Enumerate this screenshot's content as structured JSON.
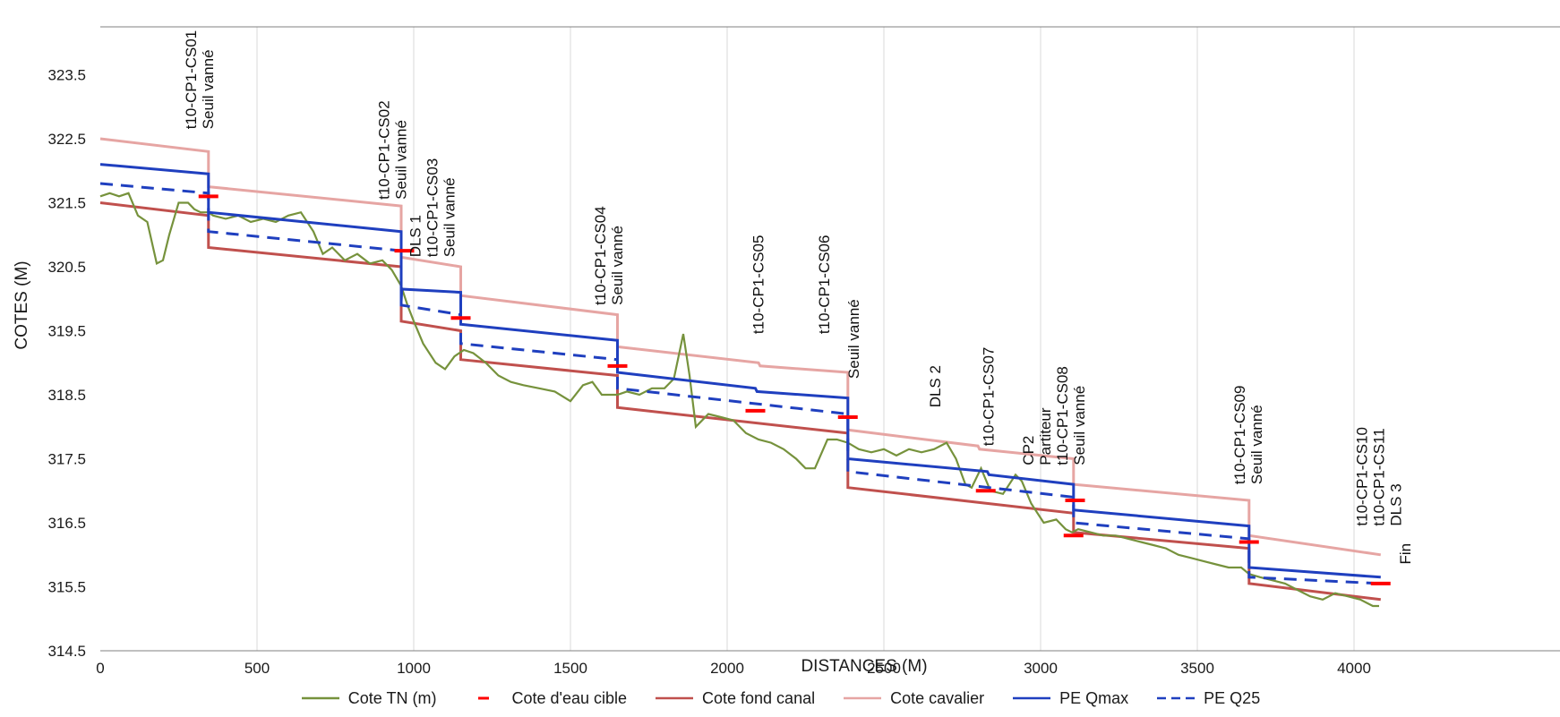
{
  "chart_data": {
    "type": "line",
    "title": "",
    "xlabel": "DISTANCES (M)",
    "ylabel": "COTES (M)",
    "xlim": [
      0,
      4150
    ],
    "ylim": [
      314.5,
      324.0
    ],
    "xticks": [
      0,
      500,
      1000,
      1500,
      2000,
      2500,
      3000,
      3500,
      4000
    ],
    "xtick_labels": [
      "0",
      "500",
      "1000",
      "1500",
      "2000",
      "2500",
      "3000",
      "3500",
      "4000"
    ],
    "yticks": [
      314.5,
      315.5,
      316.5,
      317.5,
      318.5,
      319.5,
      320.5,
      321.5,
      322.5,
      323.5
    ],
    "ytick_labels": [
      "314.5",
      "315.5",
      "316.5",
      "317.5",
      "318.5",
      "319.5",
      "320.5",
      "321.5",
      "322.5",
      "323.5"
    ],
    "grid": "vertical",
    "legend_position": "bottom",
    "series": [
      {
        "name": "Cote TN (m)",
        "color": "#76923c",
        "style": "solid",
        "x": [
          0,
          30,
          60,
          90,
          120,
          150,
          180,
          200,
          220,
          250,
          280,
          300,
          320,
          345,
          360,
          400,
          440,
          480,
          520,
          560,
          600,
          640,
          680,
          710,
          740,
          780,
          820,
          860,
          900,
          930,
          960,
          980,
          1000,
          1030,
          1070,
          1100,
          1130,
          1160,
          1190,
          1230,
          1270,
          1310,
          1350,
          1400,
          1450,
          1500,
          1540,
          1570,
          1600,
          1650,
          1680,
          1720,
          1760,
          1800,
          1830,
          1860,
          1880,
          1900,
          1940,
          1980,
          2020,
          2060,
          2100,
          2140,
          2180,
          2220,
          2250,
          2280,
          2320,
          2350,
          2385,
          2420,
          2460,
          2500,
          2540,
          2580,
          2620,
          2660,
          2700,
          2730,
          2760,
          2780,
          2810,
          2840,
          2880,
          2920,
          2940,
          2970,
          3010,
          3050,
          3080,
          3100,
          3120,
          3160,
          3200,
          3240,
          3280,
          3320,
          3360,
          3400,
          3440,
          3480,
          3520,
          3560,
          3600,
          3640,
          3665,
          3700,
          3740,
          3780,
          3820,
          3860,
          3900,
          3940,
          3980,
          4020,
          4060,
          4080
        ],
        "y": [
          321.6,
          321.65,
          321.6,
          321.65,
          321.3,
          321.2,
          320.55,
          320.6,
          321.0,
          321.5,
          321.5,
          321.4,
          321.35,
          321.35,
          321.3,
          321.25,
          321.3,
          321.2,
          321.25,
          321.2,
          321.3,
          321.35,
          321.05,
          320.7,
          320.8,
          320.6,
          320.7,
          320.55,
          320.6,
          320.45,
          320.2,
          319.9,
          319.65,
          319.3,
          319.0,
          318.9,
          319.1,
          319.2,
          319.15,
          319.0,
          318.8,
          318.7,
          318.65,
          318.6,
          318.55,
          318.4,
          318.65,
          318.7,
          318.5,
          318.5,
          318.55,
          318.5,
          318.6,
          318.6,
          318.75,
          319.45,
          318.8,
          318.0,
          318.2,
          318.15,
          318.1,
          317.9,
          317.8,
          317.75,
          317.65,
          317.5,
          317.35,
          317.35,
          317.8,
          317.8,
          317.75,
          317.65,
          317.6,
          317.65,
          317.55,
          317.65,
          317.6,
          317.65,
          317.75,
          317.5,
          317.1,
          317.05,
          317.35,
          317.0,
          316.95,
          317.25,
          317.15,
          316.8,
          316.5,
          316.55,
          316.4,
          316.35,
          316.4,
          316.35,
          316.3,
          316.3,
          316.25,
          316.2,
          316.15,
          316.1,
          316.0,
          315.95,
          315.9,
          315.85,
          315.8,
          315.8,
          315.7,
          315.65,
          315.6,
          315.55,
          315.45,
          315.35,
          315.3,
          315.4,
          315.35,
          315.3,
          315.2,
          315.2
        ]
      },
      {
        "name": "Cote d'eau cible",
        "color": "#ff0000",
        "style": "markers",
        "x": [
          345,
          970,
          1150,
          1650,
          2090,
          2385,
          2825,
          3105,
          3110,
          3665,
          4085
        ],
        "y": [
          321.6,
          320.75,
          319.7,
          318.95,
          318.25,
          318.15,
          317.0,
          316.3,
          316.85,
          316.2,
          315.55
        ]
      },
      {
        "name": "Cote fond canal",
        "color": "#c0504d",
        "style": "solid",
        "x": [
          0,
          345,
          345,
          960,
          960,
          1150,
          1150,
          1650,
          1650,
          2385,
          2385,
          3105,
          3105,
          3665,
          3665,
          4085
        ],
        "y": [
          321.5,
          321.3,
          320.8,
          320.5,
          319.65,
          319.5,
          319.05,
          318.8,
          318.3,
          317.9,
          317.05,
          316.65,
          316.35,
          316.1,
          315.55,
          315.3
        ]
      },
      {
        "name": "Cote cavalier",
        "color": "#e6a5a3",
        "style": "solid",
        "x": [
          0,
          345,
          345,
          960,
          960,
          1150,
          1150,
          1650,
          1650,
          2100,
          2105,
          2385,
          2385,
          2800,
          2805,
          3105,
          3105,
          3665,
          3665,
          4085
        ],
        "y": [
          322.5,
          322.3,
          321.75,
          321.45,
          320.65,
          320.5,
          320.05,
          319.75,
          319.25,
          319.0,
          318.95,
          318.85,
          317.95,
          317.7,
          317.65,
          317.5,
          317.1,
          316.85,
          316.3,
          316.0
        ]
      },
      {
        "name": "PE Qmax",
        "color": "#1f3fbf",
        "style": "solid",
        "x": [
          0,
          345,
          345,
          960,
          960,
          962,
          1150,
          1150,
          1650,
          1650,
          2090,
          2095,
          2385,
          2385,
          2830,
          2835,
          3105,
          3105,
          3665,
          3665,
          4085
        ],
        "y": [
          322.1,
          321.95,
          321.35,
          321.05,
          319.95,
          320.15,
          320.1,
          319.6,
          319.35,
          318.85,
          318.6,
          318.55,
          318.45,
          317.5,
          317.3,
          317.25,
          317.1,
          316.7,
          316.45,
          315.8,
          315.65
        ]
      },
      {
        "name": "PE Q25",
        "color": "#1f3fbf",
        "style": "dashed",
        "x": [
          0,
          345,
          345,
          960,
          960,
          1150,
          1150,
          1650,
          1650,
          2385,
          2385,
          3105,
          3105,
          3665,
          3665,
          4085
        ],
        "y": [
          321.8,
          321.65,
          321.05,
          320.75,
          319.9,
          319.75,
          319.3,
          319.05,
          318.6,
          318.2,
          317.3,
          316.9,
          316.5,
          316.25,
          315.65,
          315.55
        ]
      }
    ],
    "annotations": [
      {
        "x": 360,
        "y": 322.65,
        "lines": [
          "t10-CP1-CS01",
          "Seuil vanné"
        ]
      },
      {
        "x": 975,
        "y": 321.55,
        "lines": [
          "t10-CP1-CS02",
          "Seuil vanné"
        ]
      },
      {
        "x": 1130,
        "y": 320.65,
        "lines": [
          "DLS 1",
          "t10-CP1-CS03",
          "Seuil vanné"
        ]
      },
      {
        "x": 1665,
        "y": 319.9,
        "lines": [
          "t10-CP1-CS04",
          "Seuil vanné"
        ]
      },
      {
        "x": 2115,
        "y": 319.45,
        "lines": [
          "t10-CP1-CS05"
        ]
      },
      {
        "x": 2325,
        "y": 319.45,
        "lines": [
          "t10-CP1-CS06"
        ]
      },
      {
        "x": 2420,
        "y": 318.75,
        "lines": [
          "Seuil vanné"
        ]
      },
      {
        "x": 2680,
        "y": 318.3,
        "lines": [
          "DLS 2"
        ]
      },
      {
        "x": 2850,
        "y": 317.7,
        "lines": [
          "t10-CP1-CS07"
        ]
      },
      {
        "x": 3140,
        "y": 317.4,
        "lines": [
          "CP2",
          "Partiteur",
          "t10-CP1-CS08",
          "Seuil vanné"
        ]
      },
      {
        "x": 3705,
        "y": 317.1,
        "lines": [
          "t10-CP1-CS09",
          "Seuil vanné"
        ]
      },
      {
        "x": 4150,
        "y": 316.45,
        "lines": [
          "t10-CP1-CS10",
          "t10-CP1-CS11",
          "DLS 3"
        ]
      },
      {
        "x": 4180,
        "y": 315.85,
        "lines": [
          "Fin"
        ]
      }
    ]
  }
}
